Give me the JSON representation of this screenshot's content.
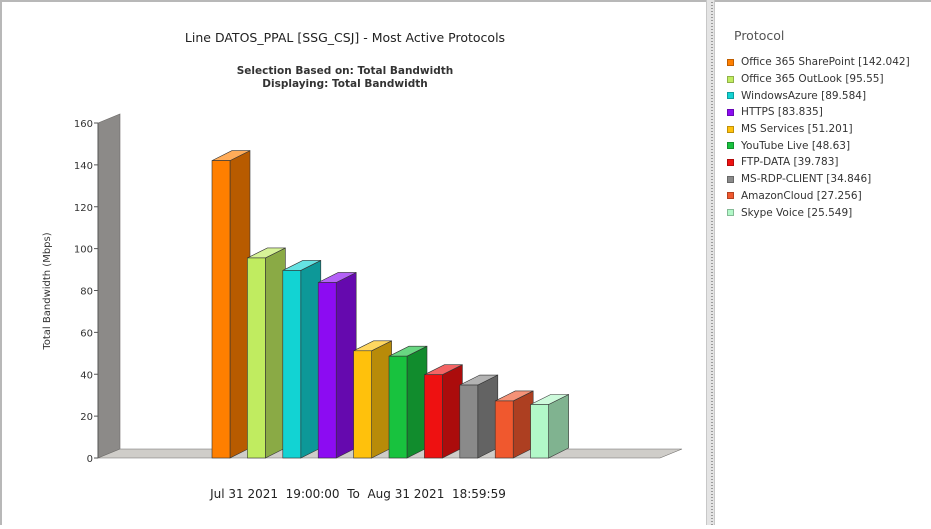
{
  "chart_data": {
    "type": "bar",
    "title": "Line DATOS_PPAL [SSG_CSJ] - Most Active Protocols",
    "subtitle_1": "Selection Based on: Total Bandwidth",
    "subtitle_2": "Displaying: Total Bandwidth",
    "ylabel": "Total Bandwidth (Mbps)",
    "xlabel": "Jul 31 2021  19:00:00  To  Aug 31 2021  18:59:59",
    "ylim": [
      0,
      160
    ],
    "yticks": [
      "0",
      "20",
      "40",
      "60",
      "80",
      "100",
      "120",
      "140",
      "160"
    ],
    "legend_title": "Protocol",
    "legend_placement": "right",
    "series": [
      {
        "name": "Office 365 SharePoint",
        "value": 142.042,
        "legend": "Office 365 SharePoint [142.042]",
        "color": "#ff7f00"
      },
      {
        "name": "Office 365 OutLook",
        "value": 95.55,
        "legend": "Office 365 OutLook [95.55]",
        "color": "#c0ec60"
      },
      {
        "name": "WindowsAzure",
        "value": 89.584,
        "legend": "WindowsAzure [89.584]",
        "color": "#12d3d3"
      },
      {
        "name": "HTTPS",
        "value": 83.835,
        "legend": "HTTPS [83.835]",
        "color": "#8c0cf2"
      },
      {
        "name": "MS Services",
        "value": 51.201,
        "legend": "MS Services [51.201]",
        "color": "#ffc10c"
      },
      {
        "name": "YouTube Live",
        "value": 48.63,
        "legend": "YouTube Live [48.63]",
        "color": "#18c23e"
      },
      {
        "name": "FTP-DATA",
        "value": 39.783,
        "legend": "FTP-DATA [39.783]",
        "color": "#ee1111"
      },
      {
        "name": "MS-RDP-CLIENT",
        "value": 34.846,
        "legend": "MS-RDP-CLIENT [34.846]",
        "color": "#8a8a8a"
      },
      {
        "name": "AmazonCloud",
        "value": 27.256,
        "legend": "AmazonCloud [27.256]",
        "color": "#f0582e"
      },
      {
        "name": "Skype Voice",
        "value": 25.549,
        "legend": "Skype Voice [25.549]",
        "color": "#b2f8c8"
      }
    ]
  }
}
